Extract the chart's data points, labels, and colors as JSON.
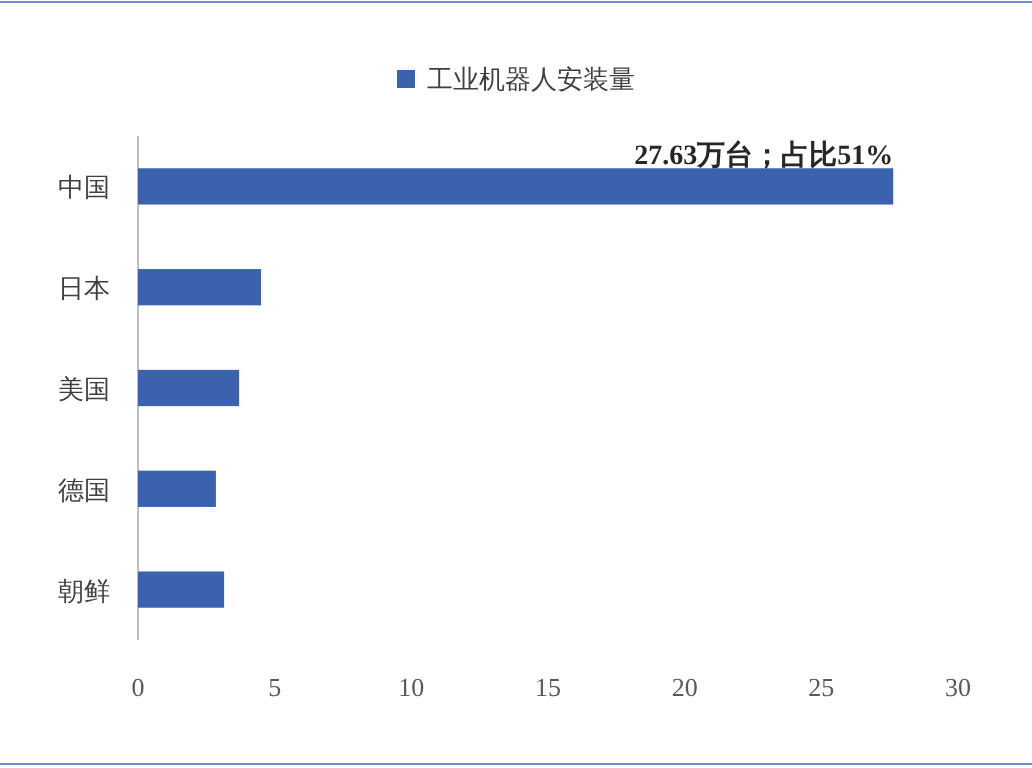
{
  "chart_data": {
    "type": "bar",
    "orientation": "horizontal",
    "categories": [
      "中国",
      "日本",
      "美国",
      "德国",
      "朝鲜"
    ],
    "series": [
      {
        "name": "工业机器人安装量",
        "color": "#3b62ad",
        "values": [
          27.63,
          4.5,
          3.7,
          2.85,
          3.15
        ]
      }
    ],
    "xlim": [
      0,
      30
    ],
    "xticks": [
      0,
      5,
      10,
      15,
      20,
      25,
      30
    ],
    "legend": "top",
    "grid": false,
    "annotations": [
      {
        "text": "27.63万台；占比51%",
        "x": 27.63,
        "y": "中国"
      }
    ]
  }
}
